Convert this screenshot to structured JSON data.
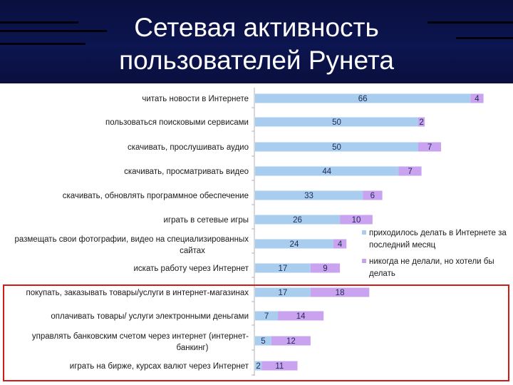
{
  "slide": {
    "title_line1": "Сетевая активность",
    "title_line2": "пользователей Рунета"
  },
  "colors": {
    "header_bg": "#0c1550",
    "series1": "#a9cdef",
    "series2": "#c9a3f0",
    "highlight_border": "#d11a1a"
  },
  "chart_data": {
    "type": "bar",
    "orientation": "horizontal",
    "stacked": true,
    "categories": [
      [
        "читать новости в Интернете"
      ],
      [
        "пользоваться поисковыми сервисами"
      ],
      [
        "скачивать, прослушивать аудио"
      ],
      [
        "скачивать, просматривать видео"
      ],
      [
        "скачивать, обновлять программное обеспечение"
      ],
      [
        "играть в сетевые игры"
      ],
      [
        "размещать свои фотографии, видео на специализированных",
        "сайтах"
      ],
      [
        "искать работу через Интернет"
      ],
      [
        "покупать, заказывать товары/услуги в интернет-магазинах"
      ],
      [
        "оплачивать товары/ услуги электронными деньгами"
      ],
      [
        "управлять банковским счетом через интернет (интернет-",
        "банкинг)"
      ],
      [
        "играть на бирже, курсах валют через Интернет"
      ]
    ],
    "series": [
      {
        "name": [
          "приходилось делать в Интернете за",
          "последний месяц"
        ],
        "values": [
          66,
          50,
          50,
          44,
          33,
          26,
          24,
          17,
          17,
          7,
          5,
          2
        ]
      },
      {
        "name": [
          "никогда не делали, но хотели бы",
          "делать"
        ],
        "values": [
          4,
          2,
          7,
          7,
          6,
          10,
          4,
          9,
          18,
          14,
          12,
          11
        ]
      }
    ],
    "legend_position": "right",
    "highlighted_rows": [
      8,
      9,
      10,
      11
    ]
  }
}
